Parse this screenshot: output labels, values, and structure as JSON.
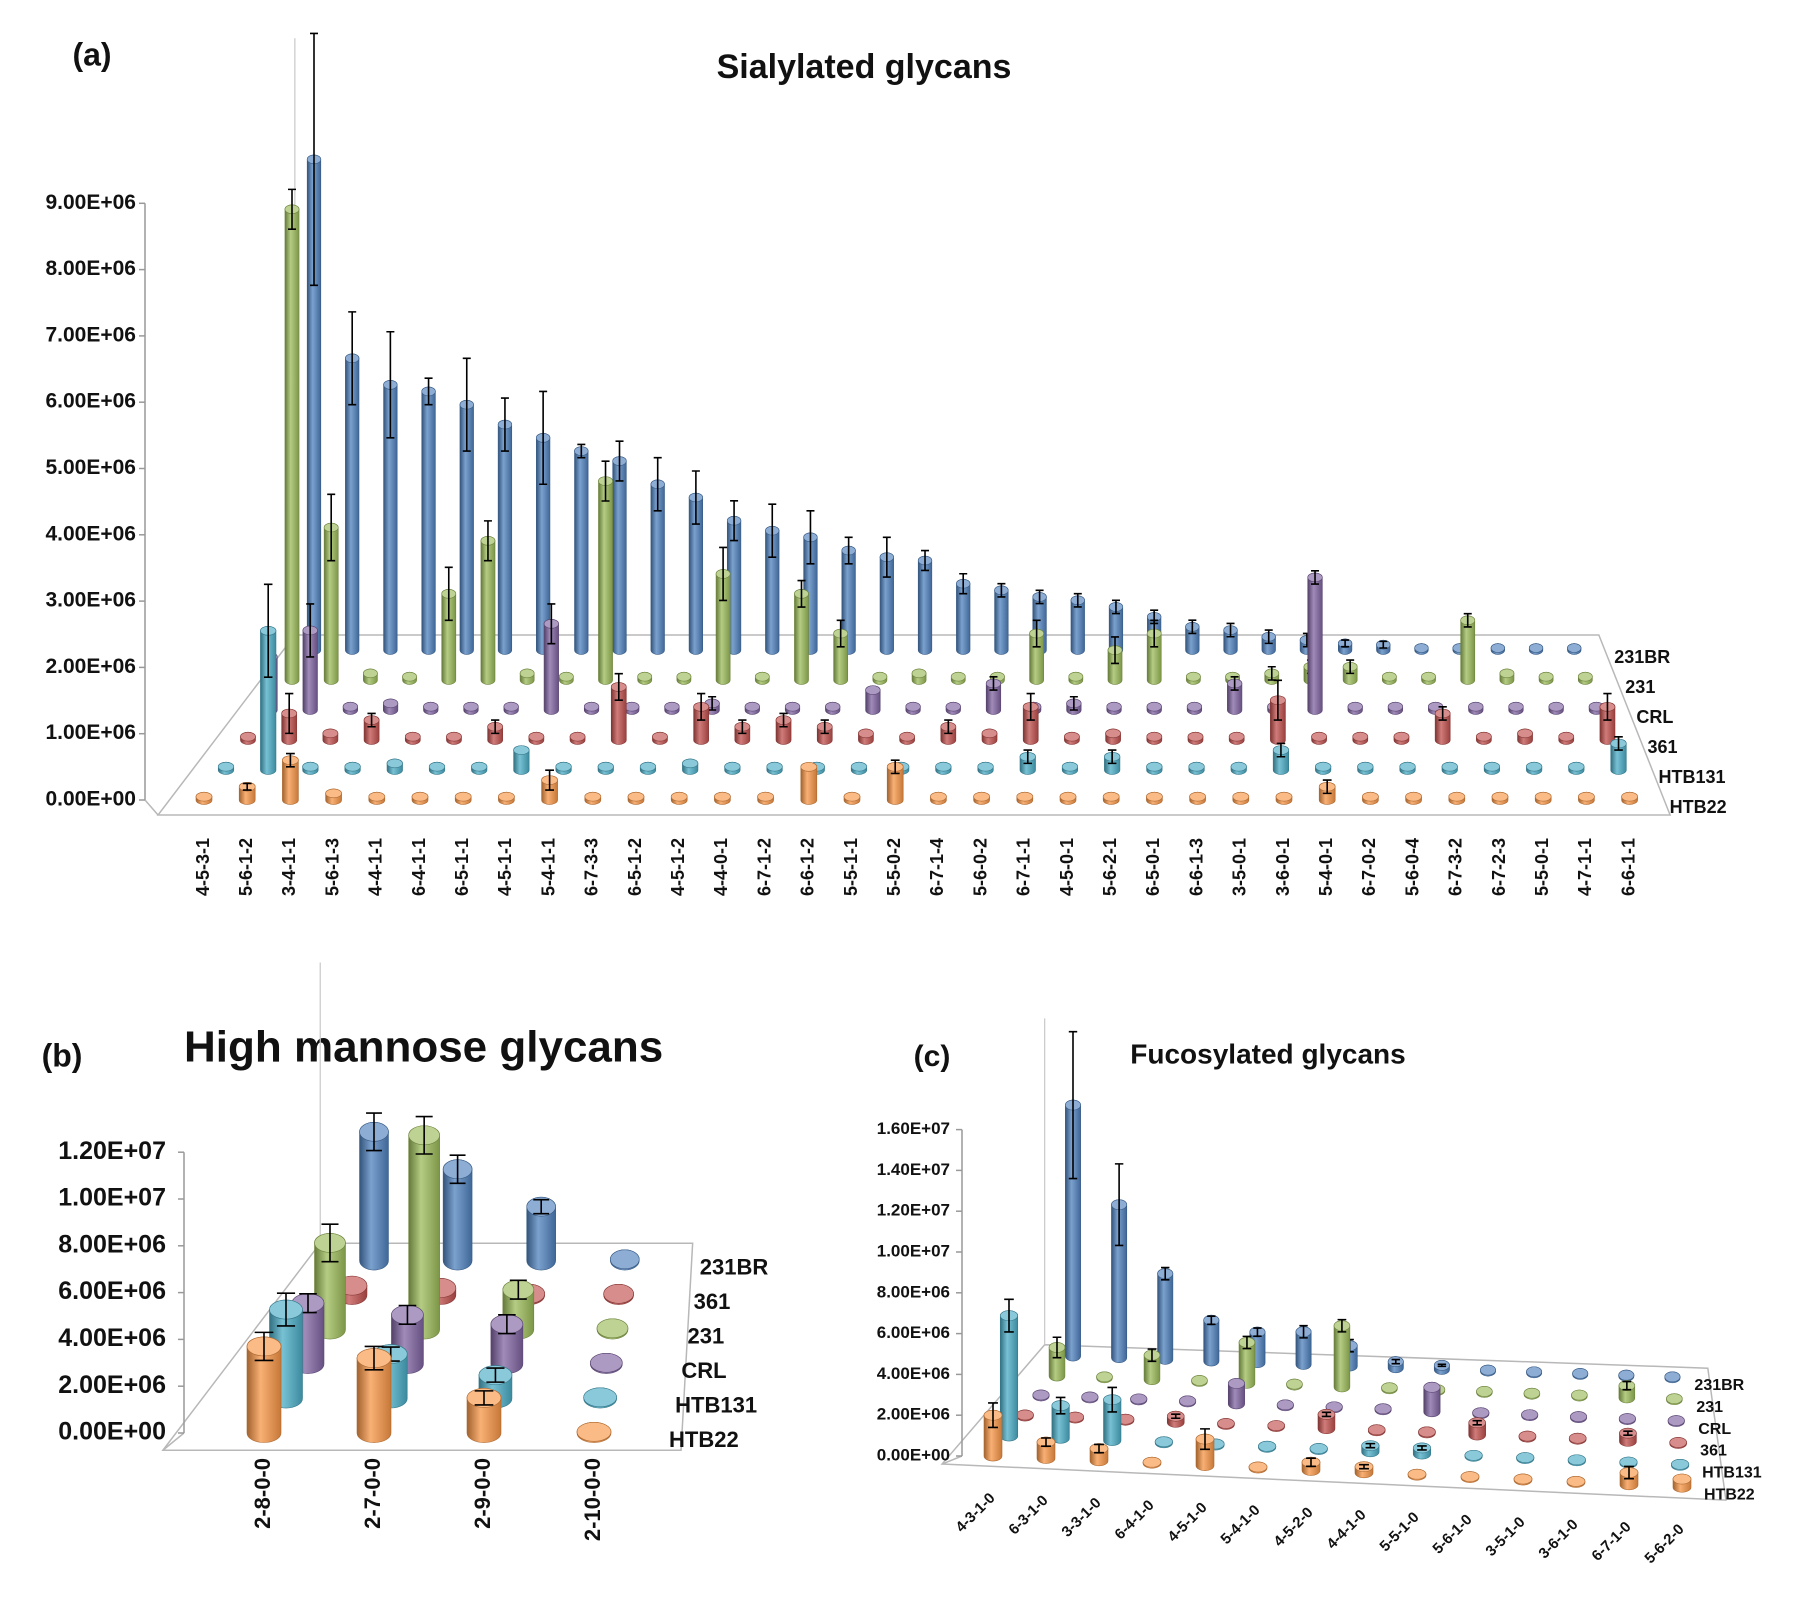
{
  "chart_data": [
    {
      "type": "bar",
      "panel_label": "(a)",
      "title": "Sialylated glycans",
      "categories": [
        "4-5-3-1",
        "5-6-1-2",
        "3-4-1-1",
        "5-6-1-3",
        "4-4-1-1",
        "6-4-1-1",
        "6-5-1-1",
        "4-5-1-1",
        "5-4-1-1",
        "6-7-3-3",
        "6-5-1-2",
        "4-5-1-2",
        "4-4-0-1",
        "6-7-1-2",
        "6-6-1-2",
        "5-5-1-1",
        "5-5-0-2",
        "6-7-1-4",
        "5-6-0-2",
        "6-7-1-1",
        "4-5-0-1",
        "5-6-2-1",
        "6-5-0-1",
        "6-6-1-3",
        "3-5-0-1",
        "3-6-0-1",
        "5-4-0-1",
        "6-7-0-2",
        "5-6-0-4",
        "6-7-3-2",
        "6-7-2-3",
        "5-5-0-1",
        "4-7-1-1",
        "6-6-1-1"
      ],
      "series": [
        {
          "name": "231BR",
          "color": "#4f81bd",
          "values": [
            7400000.0,
            4400000.0,
            4000000.0,
            3900000.0,
            3700000.0,
            3400000.0,
            3200000.0,
            3000000.0,
            2850000.0,
            2500000.0,
            2300000.0,
            1950000.0,
            1800000.0,
            1700000.0,
            1500000.0,
            1400000.0,
            1350000.0,
            1000000.0,
            900000.0,
            800000.0,
            750000.0,
            650000.0,
            500000.0,
            350000.0,
            300000.0,
            200000.0,
            150000.0,
            100000.0,
            80000.0,
            30000.0,
            30000.0,
            30000.0,
            30000.0,
            30000.0
          ],
          "errors": [
            1900000.0,
            700000.0,
            800000.0,
            200000.0,
            700000.0,
            400000.0,
            700000.0,
            100000.0,
            300000.0,
            400000.0,
            400000.0,
            300000.0,
            400000.0,
            400000.0,
            200000.0,
            300000.0,
            150000.0,
            150000.0,
            100000.0,
            100000.0,
            100000.0,
            100000.0,
            100000.0,
            100000.0,
            100000.0,
            100000.0,
            100000.0,
            50000.0,
            50000.0,
            null,
            null,
            null,
            null,
            null
          ]
        },
        {
          "name": "231",
          "color": "#9bbb59",
          "values": [
            7100000.0,
            2300000.0,
            100000.0,
            50000.0,
            1300000.0,
            2100000.0,
            100000.0,
            50000.0,
            3000000.0,
            50000.0,
            50000.0,
            1600000.0,
            50000.0,
            1300000.0,
            700000.0,
            50000.0,
            100000.0,
            50000.0,
            50000.0,
            700000.0,
            50000.0,
            450000.0,
            700000.0,
            50000.0,
            50000.0,
            100000.0,
            200000.0,
            200000.0,
            50000.0,
            50000.0,
            900000.0,
            100000.0,
            50000.0,
            50000.0
          ],
          "errors": [
            300000.0,
            500000.0,
            null,
            null,
            400000.0,
            300000.0,
            null,
            null,
            300000.0,
            null,
            null,
            400000.0,
            null,
            200000.0,
            200000.0,
            null,
            null,
            null,
            null,
            200000.0,
            null,
            200000.0,
            200000.0,
            null,
            null,
            100000.0,
            100000.0,
            100000.0,
            null,
            null,
            100000.0,
            null,
            null,
            null
          ]
        },
        {
          "name": "CRL",
          "color": "#8064a2",
          "values": [
            800000.0,
            1200000.0,
            50000.0,
            100000.0,
            50000.0,
            50000.0,
            50000.0,
            1300000.0,
            50000.0,
            50000.0,
            50000.0,
            100000.0,
            50000.0,
            50000.0,
            50000.0,
            300000.0,
            50000.0,
            50000.0,
            400000.0,
            50000.0,
            100000.0,
            50000.0,
            50000.0,
            50000.0,
            400000.0,
            50000.0,
            2000000.0,
            50000.0,
            50000.0,
            50000.0,
            50000.0,
            50000.0,
            50000.0,
            50000.0
          ],
          "errors": [
            300000.0,
            400000.0,
            null,
            null,
            null,
            null,
            null,
            300000.0,
            null,
            null,
            null,
            100000.0,
            null,
            null,
            null,
            null,
            null,
            null,
            100000.0,
            null,
            100000.0,
            null,
            null,
            null,
            100000.0,
            null,
            100000.0,
            null,
            null,
            null,
            null,
            null,
            null,
            null
          ]
        },
        {
          "name": "361",
          "color": "#c0504d",
          "values": [
            50000.0,
            400000.0,
            100000.0,
            300000.0,
            50000.0,
            50000.0,
            200000.0,
            50000.0,
            50000.0,
            800000.0,
            50000.0,
            500000.0,
            200000.0,
            300000.0,
            200000.0,
            100000.0,
            50000.0,
            200000.0,
            100000.0,
            500000.0,
            50000.0,
            100000.0,
            50000.0,
            50000.0,
            50000.0,
            600000.0,
            50000.0,
            50000.0,
            50000.0,
            400000.0,
            50000.0,
            100000.0,
            50000.0,
            500000.0
          ],
          "errors": [
            null,
            300000.0,
            null,
            100000.0,
            null,
            null,
            100000.0,
            null,
            null,
            200000.0,
            null,
            200000.0,
            100000.0,
            100000.0,
            100000.0,
            null,
            null,
            100000.0,
            null,
            200000.0,
            null,
            null,
            null,
            null,
            null,
            300000.0,
            null,
            null,
            null,
            100000.0,
            null,
            null,
            null,
            200000.0
          ]
        },
        {
          "name": "HTB131",
          "color": "#4bacc6",
          "values": [
            50000.0,
            2100000.0,
            50000.0,
            50000.0,
            100000.0,
            50000.0,
            50000.0,
            300000.0,
            50000.0,
            50000.0,
            50000.0,
            100000.0,
            50000.0,
            50000.0,
            50000.0,
            50000.0,
            50000.0,
            50000.0,
            50000.0,
            200000.0,
            50000.0,
            200000.0,
            50000.0,
            50000.0,
            50000.0,
            300000.0,
            50000.0,
            50000.0,
            50000.0,
            50000.0,
            50000.0,
            50000.0,
            50000.0,
            400000.0
          ],
          "errors": [
            null,
            700000.0,
            null,
            null,
            null,
            null,
            null,
            null,
            null,
            null,
            null,
            null,
            null,
            null,
            null,
            null,
            null,
            null,
            null,
            100000.0,
            null,
            100000.0,
            null,
            null,
            null,
            100000.0,
            null,
            null,
            null,
            null,
            null,
            null,
            null,
            100000.0
          ]
        },
        {
          "name": "HTB22",
          "color": "#f79646",
          "values": [
            50000.0,
            200000.0,
            600000.0,
            100000.0,
            50000.0,
            50000.0,
            50000.0,
            50000.0,
            300000.0,
            50000.0,
            50000.0,
            50000.0,
            50000.0,
            50000.0,
            500000.0,
            50000.0,
            500000.0,
            50000.0,
            50000.0,
            50000.0,
            50000.0,
            50000.0,
            50000.0,
            50000.0,
            50000.0,
            50000.0,
            200000.0,
            50000.0,
            50000.0,
            50000.0,
            50000.0,
            50000.0,
            50000.0,
            50000.0
          ],
          "errors": [
            null,
            50000.0,
            100000.0,
            null,
            null,
            null,
            null,
            null,
            150000.0,
            null,
            null,
            null,
            null,
            null,
            null,
            null,
            100000.0,
            null,
            null,
            null,
            null,
            null,
            null,
            null,
            null,
            null,
            100000.0,
            null,
            null,
            null,
            null,
            null,
            null,
            null
          ]
        }
      ],
      "ylim": [
        0,
        9000000.0
      ],
      "yticks": [
        {
          "value": 0,
          "label": "0.00E+00"
        },
        {
          "value": 1000000.0,
          "label": "1.00E+06"
        },
        {
          "value": 2000000.0,
          "label": "2.00E+06"
        },
        {
          "value": 3000000.0,
          "label": "3.00E+06"
        },
        {
          "value": 4000000.0,
          "label": "4.00E+06"
        },
        {
          "value": 5000000.0,
          "label": "5.00E+06"
        },
        {
          "value": 6000000.0,
          "label": "6.00E+06"
        },
        {
          "value": 7000000.0,
          "label": "7.00E+06"
        },
        {
          "value": 8000000.0,
          "label": "8.00E+06"
        },
        {
          "value": 9000000.0,
          "label": "9.00E+06"
        }
      ]
    },
    {
      "type": "bar",
      "panel_label": "(b)",
      "title": "High mannose glycans",
      "categories": [
        "2-8-0-0",
        "2-7-0-0",
        "2-9-0-0",
        "2-10-0-0"
      ],
      "series": [
        {
          "name": "231BR",
          "color": "#4f81bd",
          "values": [
            5500000.0,
            3900000.0,
            2300000.0,
            50000.0
          ],
          "errors": [
            800000.0,
            600000.0,
            300000.0,
            null
          ]
        },
        {
          "name": "361",
          "color": "#c0504d",
          "values": [
            400000.0,
            300000.0,
            50000.0,
            50000.0
          ],
          "errors": [
            null,
            null,
            null,
            null
          ]
        },
        {
          "name": "231",
          "color": "#9bbb59",
          "values": [
            3700000.0,
            8300000.0,
            1700000.0,
            50000.0
          ],
          "errors": [
            800000.0,
            800000.0,
            400000.0,
            null
          ]
        },
        {
          "name": "CRL",
          "color": "#8064a2",
          "values": [
            2600000.0,
            2100000.0,
            1700000.0,
            50000.0
          ],
          "errors": [
            400000.0,
            400000.0,
            400000.0,
            null
          ]
        },
        {
          "name": "HTB131",
          "color": "#4bacc6",
          "values": [
            3800000.0,
            1900000.0,
            1000000.0,
            50000.0
          ],
          "errors": [
            700000.0,
            300000.0,
            300000.0,
            null
          ]
        },
        {
          "name": "HTB22",
          "color": "#f79646",
          "values": [
            3700000.0,
            3200000.0,
            1500000.0,
            50000.0
          ],
          "errors": [
            600000.0,
            500000.0,
            300000.0,
            null
          ]
        }
      ],
      "ylim": [
        0,
        12000000.0
      ],
      "yticks": [
        {
          "value": 0,
          "label": "0.00E+00"
        },
        {
          "value": 2000000.0,
          "label": "2.00E+06"
        },
        {
          "value": 4000000.0,
          "label": "4.00E+06"
        },
        {
          "value": 6000000.0,
          "label": "6.00E+06"
        },
        {
          "value": 8000000.0,
          "label": "8.00E+06"
        },
        {
          "value": 10000000.0,
          "label": "1.00E+07"
        },
        {
          "value": 12000000.0,
          "label": "1.20E+07"
        }
      ]
    },
    {
      "type": "bar",
      "panel_label": "(c)",
      "title": "Fucosylated glycans",
      "categories": [
        "4-3-1-0",
        "6-3-1-0",
        "3-3-1-0",
        "6-4-1-0",
        "4-5-1-0",
        "5-4-1-0",
        "4-5-2-0",
        "4-4-1-0",
        "5-5-1-0",
        "5-6-1-0",
        "3-5-1-0",
        "3-6-1-0",
        "6-7-1-0",
        "5-6-2-0"
      ],
      "series": [
        {
          "name": "231BR",
          "color": "#4f81bd",
          "values": [
            12300000.0,
            7500000.0,
            4200000.0,
            2000000.0,
            1500000.0,
            1600000.0,
            1000000.0,
            300000.0,
            200000.0,
            50000.0,
            50000.0,
            50000.0,
            50000.0,
            50000.0
          ],
          "errors": [
            3600000.0,
            2000000.0,
            300000.0,
            200000.0,
            200000.0,
            300000.0,
            300000.0,
            100000.0,
            50000.0,
            null,
            null,
            null,
            null,
            null
          ]
        },
        {
          "name": "231",
          "color": "#9bbb59",
          "values": [
            1400000.0,
            50000.0,
            1200000.0,
            50000.0,
            2000000.0,
            50000.0,
            3000000.0,
            50000.0,
            50000.0,
            50000.0,
            50000.0,
            50000.0,
            600000.0,
            50000.0
          ],
          "errors": [
            500000.0,
            null,
            300000.0,
            null,
            300000.0,
            null,
            300000.0,
            null,
            null,
            null,
            null,
            null,
            200000.0,
            null
          ]
        },
        {
          "name": "CRL",
          "color": "#8064a2",
          "values": [
            50000.0,
            50000.0,
            50000.0,
            50000.0,
            1000000.0,
            50000.0,
            50000.0,
            50000.0,
            1200000.0,
            50000.0,
            50000.0,
            50000.0,
            50000.0,
            50000.0
          ],
          "errors": [
            null,
            null,
            null,
            null,
            null,
            null,
            null,
            null,
            null,
            null,
            null,
            null,
            null,
            null
          ]
        },
        {
          "name": "361",
          "color": "#c0504d",
          "values": [
            50000.0,
            50000.0,
            50000.0,
            300000.0,
            50000.0,
            50000.0,
            700000.0,
            50000.0,
            50000.0,
            600000.0,
            50000.0,
            50000.0,
            400000.0,
            50000.0
          ],
          "errors": [
            null,
            null,
            null,
            100000.0,
            null,
            null,
            100000.0,
            null,
            null,
            100000.0,
            null,
            null,
            100000.0,
            null
          ]
        },
        {
          "name": "HTB131",
          "color": "#4bacc6",
          "values": [
            5900000.0,
            1600000.0,
            2000000.0,
            50000.0,
            50000.0,
            50000.0,
            50000.0,
            300000.0,
            300000.0,
            50000.0,
            50000.0,
            50000.0,
            50000.0,
            50000.0
          ],
          "errors": [
            800000.0,
            400000.0,
            600000.0,
            null,
            null,
            null,
            null,
            100000.0,
            100000.0,
            null,
            null,
            null,
            null,
            null
          ]
        },
        {
          "name": "HTB22",
          "color": "#f79646",
          "values": [
            2000000.0,
            800000.0,
            600000.0,
            50000.0,
            1300000.0,
            50000.0,
            400000.0,
            300000.0,
            50000.0,
            50000.0,
            50000.0,
            50000.0,
            600000.0,
            400000.0
          ],
          "errors": [
            600000.0,
            200000.0,
            200000.0,
            null,
            500000.0,
            null,
            200000.0,
            100000.0,
            null,
            null,
            null,
            null,
            300000.0,
            null
          ]
        }
      ],
      "ylim": [
        0,
        16000000.0
      ],
      "yticks": [
        {
          "value": 0,
          "label": "0.00E+00"
        },
        {
          "value": 2000000.0,
          "label": "2.00E+06"
        },
        {
          "value": 4000000.0,
          "label": "4.00E+06"
        },
        {
          "value": 6000000.0,
          "label": "6.00E+06"
        },
        {
          "value": 8000000.0,
          "label": "8.00E+06"
        },
        {
          "value": 10000000.0,
          "label": "1.00E+07"
        },
        {
          "value": 12000000.0,
          "label": "1.20E+07"
        },
        {
          "value": 14000000.0,
          "label": "1.40E+07"
        },
        {
          "value": 16000000.0,
          "label": "1.60E+07"
        }
      ]
    }
  ]
}
